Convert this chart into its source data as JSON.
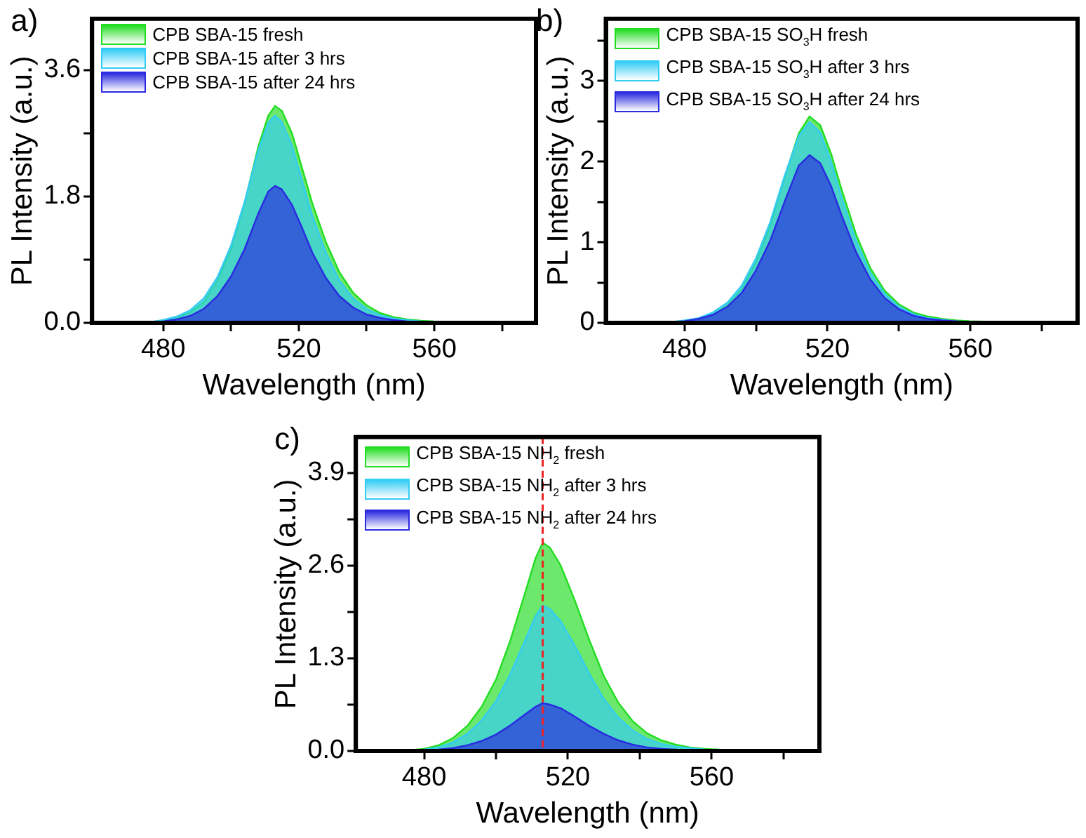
{
  "chart_data": [
    {
      "type": "area",
      "title": "a)",
      "xlabel": "Wavelength (nm)",
      "ylabel": "PL Intensity (a.u.)",
      "xlim": [
        459,
        590
      ],
      "xticks": [
        480,
        {
          "value": 500,
          "label": null
        },
        520,
        {
          "value": 540,
          "label": null
        },
        560,
        {
          "value": 580,
          "label": null
        }
      ],
      "ylim": [
        0,
        4.33
      ],
      "yticks": [
        {
          "value": 0,
          "label": "0.0"
        },
        {
          "value": 0.9,
          "label": null
        },
        1.8,
        {
          "value": 2.7,
          "label": null
        },
        3.6
      ],
      "legend": "top left",
      "marker": "none",
      "grid": false,
      "series": [
        {
          "name": "CPB SBA-15 fresh",
          "color": "#22dd22",
          "x": [
            466,
            476,
            480,
            484,
            488,
            492,
            496,
            500,
            504,
            508,
            511,
            513,
            515,
            518,
            521,
            524,
            528,
            532,
            536,
            540,
            544,
            548,
            552,
            556,
            560,
            570,
            580
          ],
          "values": [
            0,
            0.01,
            0.03,
            0.07,
            0.15,
            0.3,
            0.6,
            1.05,
            1.7,
            2.5,
            2.95,
            3.09,
            3.02,
            2.7,
            2.2,
            1.7,
            1.15,
            0.72,
            0.43,
            0.25,
            0.14,
            0.08,
            0.05,
            0.03,
            0.02,
            0.01,
            0
          ]
        },
        {
          "name": "CPB SBA-15 after 3 hrs",
          "color": "#33ccf5",
          "x": [
            466,
            476,
            480,
            484,
            488,
            492,
            496,
            500,
            504,
            508,
            511,
            513,
            515,
            518,
            521,
            524,
            528,
            532,
            536,
            540,
            544,
            548,
            552,
            556,
            560,
            570,
            580
          ],
          "values": [
            0,
            0.01,
            0.04,
            0.09,
            0.18,
            0.35,
            0.65,
            1.1,
            1.72,
            2.45,
            2.85,
            2.95,
            2.86,
            2.52,
            2.02,
            1.52,
            1,
            0.6,
            0.35,
            0.2,
            0.11,
            0.06,
            0.04,
            0.02,
            0.01,
            0,
            0
          ]
        },
        {
          "name": "CPB SBA-15 after 24 hrs",
          "color": "#2a2ae0",
          "x": [
            466,
            476,
            480,
            484,
            488,
            492,
            496,
            500,
            504,
            508,
            511,
            513,
            515,
            518,
            521,
            524,
            528,
            532,
            536,
            540,
            544,
            548,
            552,
            556,
            560,
            570,
            580
          ],
          "values": [
            0,
            0.01,
            0.02,
            0.05,
            0.1,
            0.2,
            0.38,
            0.66,
            1.05,
            1.55,
            1.87,
            1.95,
            1.9,
            1.68,
            1.35,
            1,
            0.64,
            0.38,
            0.22,
            0.12,
            0.07,
            0.04,
            0.02,
            0.01,
            0.01,
            0,
            0
          ]
        }
      ]
    },
    {
      "type": "area",
      "title": "b)",
      "xlabel": "Wavelength (nm)",
      "ylabel": "PL Intensity (a.u.)",
      "xlim": [
        458,
        590
      ],
      "xticks": [
        480,
        {
          "value": 500,
          "label": null
        },
        520,
        {
          "value": 540,
          "label": null
        },
        560,
        {
          "value": 580,
          "label": null
        }
      ],
      "ylim": [
        0,
        3.77
      ],
      "yticks": [
        0,
        {
          "value": 0.5,
          "label": null
        },
        1,
        {
          "value": 1.5,
          "label": null
        },
        2,
        {
          "value": 2.5,
          "label": null
        },
        3,
        {
          "value": 3.5,
          "label": null
        }
      ],
      "legend": "top left",
      "marker": "none",
      "grid": false,
      "series": [
        {
          "name": "CPB SBA-15 SO$_{3}$H fresh",
          "color": "#22dd22",
          "x": [
            466,
            476,
            480,
            484,
            488,
            492,
            496,
            500,
            504,
            508,
            512,
            515,
            518,
            521,
            524,
            528,
            532,
            536,
            540,
            544,
            548,
            552,
            556,
            560,
            570,
            580
          ],
          "values": [
            0,
            0.01,
            0.02,
            0.05,
            0.11,
            0.22,
            0.42,
            0.75,
            1.2,
            1.8,
            2.35,
            2.56,
            2.45,
            2.1,
            1.65,
            1.1,
            0.68,
            0.4,
            0.23,
            0.13,
            0.08,
            0.05,
            0.03,
            0.02,
            0.01,
            0
          ]
        },
        {
          "name": "CPB SBA-15 SO$_{3}$H after 3 hrs",
          "color": "#33ccf5",
          "x": [
            466,
            476,
            480,
            484,
            488,
            492,
            496,
            500,
            504,
            508,
            512,
            515,
            518,
            521,
            524,
            528,
            532,
            536,
            540,
            544,
            548,
            552,
            556,
            560,
            570,
            580
          ],
          "values": [
            0,
            0.01,
            0.03,
            0.06,
            0.13,
            0.25,
            0.46,
            0.8,
            1.25,
            1.82,
            2.32,
            2.49,
            2.36,
            2,
            1.55,
            1.02,
            0.62,
            0.36,
            0.2,
            0.11,
            0.06,
            0.04,
            0.02,
            0.01,
            0,
            0
          ]
        },
        {
          "name": "CPB SBA-15 SO$_{3}$H after 24 hrs",
          "color": "#2a2ae0",
          "x": [
            466,
            476,
            480,
            484,
            488,
            492,
            496,
            500,
            504,
            508,
            512,
            515,
            518,
            521,
            524,
            528,
            532,
            536,
            540,
            544,
            548,
            552,
            556,
            560,
            570,
            580
          ],
          "values": [
            0,
            0.01,
            0.02,
            0.05,
            0.1,
            0.2,
            0.37,
            0.65,
            1.02,
            1.5,
            1.95,
            2.08,
            1.98,
            1.7,
            1.33,
            0.88,
            0.54,
            0.31,
            0.17,
            0.09,
            0.05,
            0.03,
            0.02,
            0.01,
            0,
            0
          ]
        }
      ]
    },
    {
      "type": "area",
      "title": "c)",
      "xlabel": "Wavelength (nm)",
      "ylabel": "PL Intensity (a.u.)",
      "xlim": [
        461,
        590
      ],
      "xticks": [
        480,
        {
          "value": 500,
          "label": null
        },
        520,
        {
          "value": 540,
          "label": null
        },
        560,
        {
          "value": 580,
          "label": null
        }
      ],
      "ylim": [
        0,
        4.4
      ],
      "yticks": [
        {
          "value": 0,
          "label": "0.0"
        },
        {
          "value": 0.65,
          "label": null
        },
        1.3,
        {
          "value": 1.95,
          "label": null
        },
        2.6,
        {
          "value": 3.25,
          "label": null
        },
        3.9
      ],
      "legend": "top left",
      "marker": "none",
      "grid": false,
      "ref_lines": [
        {
          "axis": "x",
          "value": 513,
          "color": "#ee2222",
          "line_style": "dashed"
        }
      ],
      "series": [
        {
          "name": "CPB SBA-15 NH$_{2}$ fresh",
          "color": "#22dd22",
          "x": [
            466,
            476,
            480,
            484,
            488,
            492,
            496,
            500,
            504,
            508,
            511,
            513,
            515,
            518,
            522,
            526,
            530,
            534,
            538,
            542,
            546,
            550,
            554,
            558,
            562,
            570,
            580
          ],
          "values": [
            0,
            0.01,
            0.03,
            0.08,
            0.18,
            0.35,
            0.62,
            1,
            1.55,
            2.2,
            2.7,
            2.92,
            2.85,
            2.6,
            2.1,
            1.55,
            1.05,
            0.68,
            0.42,
            0.25,
            0.15,
            0.09,
            0.05,
            0.03,
            0.02,
            0.01,
            0
          ]
        },
        {
          "name": "CPB SBA-15 NH$_{2}$ after 3 hrs",
          "color": "#33ccf5",
          "x": [
            466,
            476,
            480,
            484,
            488,
            492,
            496,
            500,
            504,
            508,
            511,
            513,
            515,
            518,
            522,
            526,
            530,
            534,
            538,
            542,
            546,
            550,
            554,
            558,
            562,
            570,
            580
          ],
          "values": [
            0,
            0.01,
            0.02,
            0.05,
            0.12,
            0.24,
            0.43,
            0.7,
            1.08,
            1.54,
            1.89,
            2.04,
            1.99,
            1.82,
            1.47,
            1.08,
            0.73,
            0.47,
            0.29,
            0.17,
            0.1,
            0.06,
            0.04,
            0.02,
            0.01,
            0,
            0
          ]
        },
        {
          "name": "CPB SBA-15 NH$_{2}$ after 24 hrs",
          "color": "#2a2ae0",
          "x": [
            466,
            476,
            480,
            484,
            488,
            492,
            496,
            500,
            504,
            508,
            511,
            513,
            515,
            518,
            522,
            526,
            530,
            534,
            538,
            542,
            546,
            550,
            554,
            558,
            562,
            570,
            580
          ],
          "values": [
            0,
            0,
            0.01,
            0.02,
            0.04,
            0.08,
            0.14,
            0.23,
            0.36,
            0.51,
            0.62,
            0.67,
            0.65,
            0.6,
            0.48,
            0.35,
            0.24,
            0.15,
            0.09,
            0.05,
            0.03,
            0.02,
            0.01,
            0.01,
            0,
            0,
            0
          ]
        }
      ]
    }
  ]
}
